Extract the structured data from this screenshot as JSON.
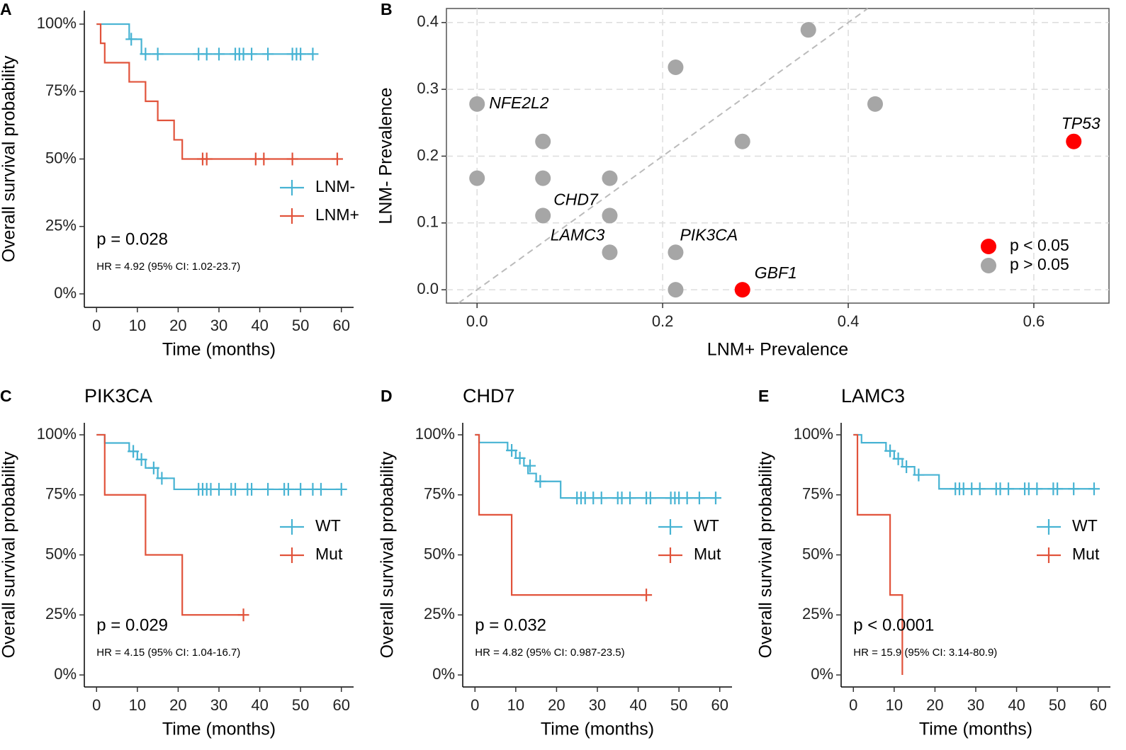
{
  "chart_data": [
    {
      "panel": "A",
      "type": "step",
      "xlabel": "Time (months)",
      "ylabel": "Overall survival probability",
      "xlim": [
        -3,
        63
      ],
      "xticks": [
        0,
        10,
        20,
        30,
        40,
        50,
        60
      ],
      "ylim": [
        -5,
        105
      ],
      "yticks": [
        {
          "value": 0,
          "label": "0%"
        },
        {
          "value": 25,
          "label": "25%"
        },
        {
          "value": 50,
          "label": "50%"
        },
        {
          "value": 75,
          "label": "75%"
        },
        {
          "value": 100,
          "label": "100%"
        }
      ],
      "legend": "right",
      "annotations": [
        "p = 0.028",
        "HR = 4.92 (95% CI: 1.02-23.7)"
      ],
      "series": [
        {
          "name": "LNM-",
          "color": "#47b3d3",
          "x": [
            0,
            8,
            11
          ],
          "values": [
            100,
            94.4,
            88.9
          ],
          "censor_x": [
            8.5,
            12,
            15,
            25,
            27,
            30,
            34,
            35,
            36,
            38,
            42,
            48,
            49,
            50,
            53
          ],
          "censor_values": [
            94.4,
            88.9,
            88.9,
            88.9,
            88.9,
            88.9,
            88.9,
            88.9,
            88.9,
            88.9,
            88.9,
            88.9,
            88.9,
            88.9,
            88.9
          ]
        },
        {
          "name": "LNM+",
          "color": "#e1533b",
          "x": [
            0,
            1,
            2,
            8,
            12,
            15,
            19,
            21
          ],
          "values": [
            100,
            92.9,
            85.7,
            78.6,
            71.4,
            64.3,
            57.1,
            50
          ],
          "censor_x": [
            26,
            27,
            39,
            41,
            48,
            59
          ],
          "censor_values": [
            50,
            50,
            50,
            50,
            50,
            50
          ]
        }
      ]
    },
    {
      "panel": "B",
      "type": "scatter",
      "xlabel": "LNM+ Prevalence",
      "ylabel": "LNM- Prevalence",
      "xlim": [
        -0.033,
        0.681
      ],
      "xticks": [
        {
          "value": 0,
          "label": "0.0"
        },
        0.2,
        0.4,
        0.6
      ],
      "ylim": [
        -0.02,
        0.421
      ],
      "yticks": [
        {
          "value": 0,
          "label": "0.0"
        },
        0.1,
        0.2,
        0.3,
        0.4
      ],
      "grid": true,
      "diagonal": true,
      "legend": "bottom-right",
      "series": [
        {
          "name": "p < 0.05",
          "color": "#ff0000",
          "x": [
            0.286,
            0.643
          ],
          "values": [
            0,
            0.222
          ],
          "labels": [
            "GBF1",
            "TP53"
          ]
        },
        {
          "name": "p > 0.05",
          "color": "#a6a6a6",
          "x": [
            0,
            0,
            0.071,
            0.071,
            0.071,
            0.143,
            0.143,
            0.143,
            0.214,
            0.214,
            0.214,
            0.286,
            0.357,
            0.429
          ],
          "values": [
            0.278,
            0.167,
            0.222,
            0.167,
            0.111,
            0.167,
            0.111,
            0.056,
            0.333,
            0.056,
            0,
            0.222,
            0.389,
            0.278
          ],
          "labels": [
            "NFE2L2",
            null,
            null,
            null,
            "CHD7",
            null,
            null,
            "LAMC3",
            null,
            "PIK3CA",
            null,
            null,
            null,
            null
          ]
        }
      ]
    },
    {
      "panel": "C",
      "type": "step",
      "title": "PIK3CA",
      "xlabel": "Time (months)",
      "ylabel": "Overall survival probability",
      "xlim": [
        -3,
        63
      ],
      "xticks": [
        0,
        10,
        20,
        30,
        40,
        50,
        60
      ],
      "ylim": [
        -5,
        105
      ],
      "yticks": [
        {
          "value": 0,
          "label": "0%"
        },
        {
          "value": 25,
          "label": "25%"
        },
        {
          "value": 50,
          "label": "50%"
        },
        {
          "value": 75,
          "label": "75%"
        },
        {
          "value": 100,
          "label": "100%"
        }
      ],
      "legend": "right",
      "annotations": [
        "p = 0.029",
        "HR = 4.15 (95% CI: 1.04-16.7)"
      ],
      "series": [
        {
          "name": "WT",
          "color": "#47b3d3",
          "x": [
            0,
            2,
            8,
            10,
            12,
            15,
            19
          ],
          "values": [
            100,
            96.6,
            93.1,
            89.7,
            86.2,
            81.9,
            77.3
          ],
          "censor_x": [
            9,
            11,
            14,
            16,
            25,
            26,
            27,
            28,
            30,
            33,
            34,
            37,
            38,
            42,
            46,
            47,
            50,
            53,
            55,
            60
          ],
          "censor_values": [
            93.1,
            89.7,
            86.2,
            81.9,
            77.3,
            77.3,
            77.3,
            77.3,
            77.3,
            77.3,
            77.3,
            77.3,
            77.3,
            77.3,
            77.3,
            77.3,
            77.3,
            77.3,
            77.3,
            77.3
          ]
        },
        {
          "name": "Mut",
          "color": "#e1533b",
          "x": [
            0,
            2,
            12,
            21
          ],
          "values": [
            100,
            75,
            50,
            25
          ],
          "censor_x": [
            36
          ],
          "censor_values": [
            25
          ]
        }
      ]
    },
    {
      "panel": "D",
      "type": "step",
      "title": "CHD7",
      "xlabel": "Time (months)",
      "ylabel": "Overall survival probability",
      "xlim": [
        -3,
        63
      ],
      "xticks": [
        0,
        10,
        20,
        30,
        40,
        50,
        60
      ],
      "ylim": [
        -5,
        105
      ],
      "yticks": [
        {
          "value": 0,
          "label": "0%"
        },
        {
          "value": 25,
          "label": "25%"
        },
        {
          "value": 50,
          "label": "50%"
        },
        {
          "value": 75,
          "label": "75%"
        },
        {
          "value": 100,
          "label": "100%"
        }
      ],
      "legend": "right",
      "annotations": [
        "p = 0.032",
        "HR = 4.82 (95% CI: 0.987-23.5)"
      ],
      "series": [
        {
          "name": "WT",
          "color": "#47b3d3",
          "x": [
            0,
            1,
            8,
            10,
            12,
            13,
            15,
            21
          ],
          "values": [
            100,
            96.8,
            93.5,
            90.3,
            87.1,
            83.9,
            80.6,
            73.7
          ],
          "censor_x": [
            9,
            11,
            13.5,
            16,
            25,
            26,
            27,
            29,
            31,
            35,
            36,
            38,
            42,
            43,
            48,
            49,
            50,
            52,
            55,
            59
          ],
          "censor_values": [
            93.5,
            90.3,
            87.1,
            80.6,
            73.7,
            73.7,
            73.7,
            73.7,
            73.7,
            73.7,
            73.7,
            73.7,
            73.7,
            73.7,
            73.7,
            73.7,
            73.7,
            73.7,
            73.7,
            73.7
          ]
        },
        {
          "name": "Mut",
          "color": "#e1533b",
          "x": [
            0,
            1,
            9
          ],
          "values": [
            100,
            66.7,
            33.3
          ],
          "censor_x": [
            42
          ],
          "censor_values": [
            33.3
          ]
        }
      ]
    },
    {
      "panel": "E",
      "type": "step",
      "title": "LAMC3",
      "xlabel": "Time (months)",
      "ylabel": "Overall survival probability",
      "xlim": [
        -3,
        63
      ],
      "xticks": [
        0,
        10,
        20,
        30,
        40,
        50,
        60
      ],
      "ylim": [
        -5,
        105
      ],
      "yticks": [
        {
          "value": 0,
          "label": "0%"
        },
        {
          "value": 25,
          "label": "25%"
        },
        {
          "value": 50,
          "label": "50%"
        },
        {
          "value": 75,
          "label": "75%"
        },
        {
          "value": 100,
          "label": "100%"
        }
      ],
      "legend": "right",
      "annotations": [
        "p < 0.0001",
        "HR = 15.9 (95% CI: 3.14-80.9)"
      ],
      "series": [
        {
          "name": "WT",
          "color": "#47b3d3",
          "x": [
            0,
            2,
            8,
            10,
            12,
            15,
            21
          ],
          "values": [
            100,
            96.7,
            93.3,
            90,
            86.7,
            83.3,
            77.5
          ],
          "censor_x": [
            9,
            11,
            13,
            16,
            25,
            26,
            27,
            29,
            31,
            35,
            36,
            38,
            42,
            43,
            45,
            49,
            50,
            54,
            59
          ],
          "censor_values": [
            93.3,
            90,
            86.7,
            83.3,
            77.5,
            77.5,
            77.5,
            77.5,
            77.5,
            77.5,
            77.5,
            77.5,
            77.5,
            77.5,
            77.5,
            77.5,
            77.5,
            77.5,
            77.5
          ]
        },
        {
          "name": "Mut",
          "color": "#e1533b",
          "x": [
            0,
            1,
            9,
            12
          ],
          "values": [
            100,
            66.7,
            33.3,
            0
          ],
          "censor_x": [],
          "censor_values": []
        }
      ]
    }
  ]
}
